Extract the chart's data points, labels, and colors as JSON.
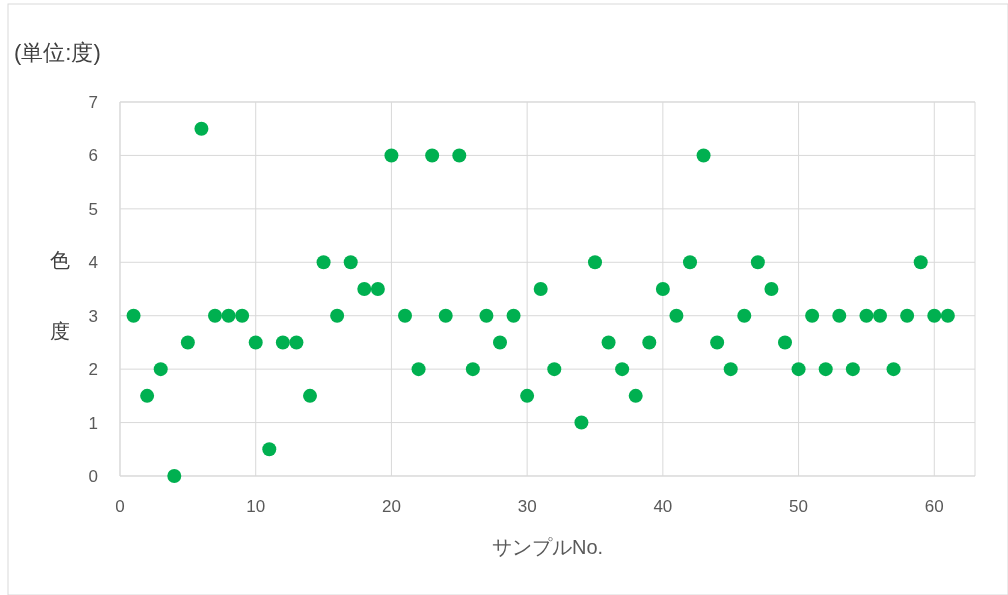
{
  "chart_data": {
    "type": "scatter",
    "title": "(単位:度)",
    "xlabel": "サンプルNo.",
    "ylabel": "色度",
    "xlim": [
      0,
      63
    ],
    "xticks": [
      0,
      10,
      20,
      30,
      40,
      50,
      60
    ],
    "ylim": [
      0,
      7
    ],
    "yticks": [
      0,
      1,
      2,
      3,
      4,
      5,
      6,
      7
    ],
    "grid": true,
    "marker": "circle",
    "series": [
      {
        "color": "#00b050",
        "x": [
          1,
          2,
          3,
          4,
          5,
          6,
          7,
          8,
          9,
          10,
          11,
          12,
          13,
          14,
          15,
          16,
          17,
          18,
          19,
          20,
          21,
          22,
          23,
          24,
          25,
          26,
          27,
          28,
          29,
          30,
          31,
          32,
          34,
          35,
          36,
          37,
          38,
          39,
          40,
          41,
          42,
          43,
          44,
          45,
          46,
          47,
          48,
          49,
          50,
          51,
          52,
          53,
          54,
          55,
          56,
          57,
          58,
          59,
          60,
          61
        ],
        "values": [
          3,
          1.5,
          2,
          0,
          2.5,
          6.5,
          3,
          3,
          3,
          2.5,
          0.5,
          2.5,
          2.5,
          1.5,
          4,
          3,
          4,
          3.5,
          3.5,
          6,
          3,
          2,
          6,
          3,
          6,
          2,
          3,
          2.5,
          3,
          1.5,
          3.5,
          2,
          1,
          4,
          2.5,
          2,
          1.5,
          2.5,
          3.5,
          3,
          4,
          6,
          2.5,
          2,
          3,
          4,
          3.5,
          2.5,
          2,
          3,
          2,
          3,
          2,
          3,
          3,
          2,
          3,
          4,
          3,
          3
        ]
      }
    ]
  }
}
